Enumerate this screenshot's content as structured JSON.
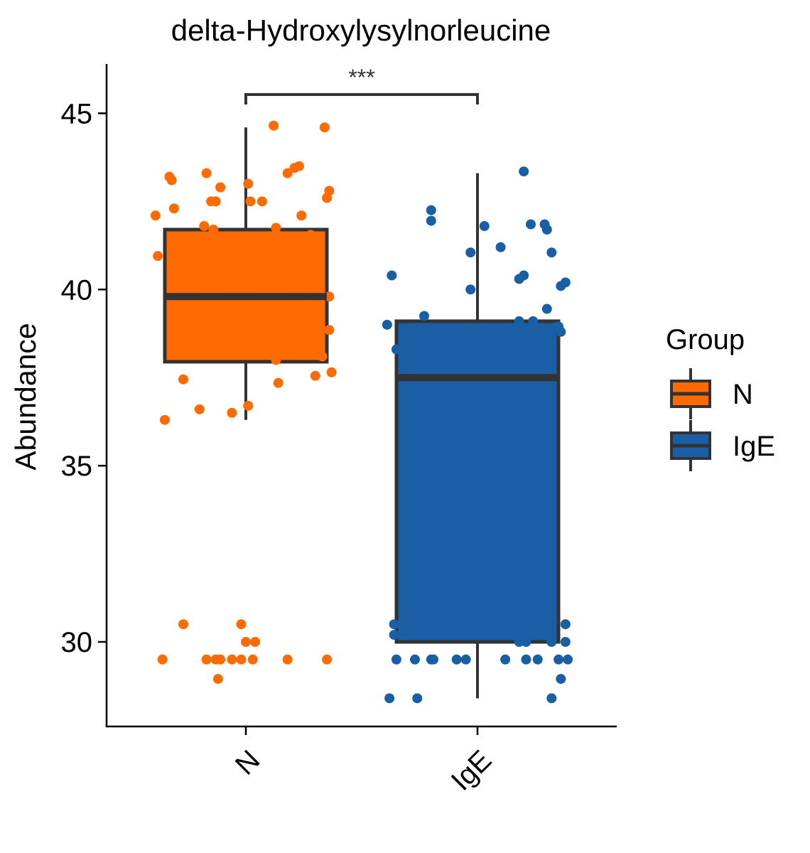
{
  "chart_data": {
    "type": "box",
    "title": "delta-Hydroxylysylnorleucine",
    "xlabel": "",
    "ylabel": "Abundance",
    "ylim": [
      27.6,
      46.4
    ],
    "yticks": [
      30,
      35,
      40,
      45
    ],
    "categories": [
      "N",
      "IgE"
    ],
    "legend": {
      "title": "Group",
      "position": "right",
      "entries": [
        "N",
        "IgE"
      ]
    },
    "significance": {
      "label": "***",
      "between": [
        "N",
        "IgE"
      ]
    },
    "colors": {
      "N": "#FF6B00",
      "IgE": "#1A5FA6",
      "box_edge": "#333333"
    },
    "series": [
      {
        "name": "N",
        "box": {
          "whisker_low": 36.3,
          "q1": 37.95,
          "median": 39.8,
          "q3": 41.7,
          "whisker_high": 44.6
        },
        "points": [
          [
            0.34,
            44.6
          ],
          [
            0.12,
            44.65
          ],
          [
            0.23,
            43.5
          ],
          [
            0.21,
            43.45
          ],
          [
            0.18,
            43.3
          ],
          [
            -0.17,
            43.3
          ],
          [
            0.01,
            43.0
          ],
          [
            -0.33,
            43.2
          ],
          [
            -0.32,
            43.1
          ],
          [
            -0.11,
            42.9
          ],
          [
            0.36,
            42.8
          ],
          [
            -0.15,
            42.5
          ],
          [
            -0.13,
            42.5
          ],
          [
            0.07,
            42.5
          ],
          [
            0.35,
            42.6
          ],
          [
            0.02,
            42.5
          ],
          [
            -0.31,
            42.3
          ],
          [
            -0.39,
            42.1
          ],
          [
            0.24,
            42.1
          ],
          [
            -0.18,
            41.8
          ],
          [
            -0.14,
            41.7
          ],
          [
            0.13,
            41.75
          ],
          [
            0.28,
            41.55
          ],
          [
            -0.38,
            40.95
          ],
          [
            0.36,
            39.8
          ],
          [
            0.12,
            39.8
          ],
          [
            -0.18,
            39.8
          ],
          [
            -0.15,
            39.65
          ],
          [
            -0.29,
            39.65
          ],
          [
            0.36,
            38.85
          ],
          [
            0.33,
            38.1
          ],
          [
            0.13,
            38.0
          ],
          [
            -0.27,
            37.45
          ],
          [
            0.3,
            37.55
          ],
          [
            0.14,
            37.35
          ],
          [
            0.37,
            37.65
          ],
          [
            -0.35,
            36.3
          ],
          [
            -0.2,
            36.6
          ],
          [
            -0.06,
            36.5
          ],
          [
            0.01,
            36.7
          ],
          [
            -0.27,
            30.5
          ],
          [
            -0.02,
            30.5
          ],
          [
            0.0,
            30.0
          ],
          [
            0.04,
            30.0
          ],
          [
            -0.36,
            29.5
          ],
          [
            -0.17,
            29.5
          ],
          [
            -0.13,
            29.5
          ],
          [
            -0.11,
            29.5
          ],
          [
            -0.06,
            29.5
          ],
          [
            -0.02,
            29.5
          ],
          [
            0.03,
            29.5
          ],
          [
            0.18,
            29.5
          ],
          [
            0.35,
            29.5
          ],
          [
            -0.12,
            28.95
          ]
        ]
      },
      {
        "name": "IgE",
        "box": {
          "whisker_low": 28.4,
          "q1": 30.0,
          "median": 37.5,
          "q3": 39.1,
          "whisker_high": 43.3
        },
        "points": [
          [
            0.2,
            43.35
          ],
          [
            -0.2,
            42.25
          ],
          [
            -0.2,
            41.95
          ],
          [
            0.23,
            41.85
          ],
          [
            0.29,
            41.85
          ],
          [
            0.3,
            41.7
          ],
          [
            0.03,
            41.8
          ],
          [
            0.1,
            41.2
          ],
          [
            -0.03,
            41.05
          ],
          [
            0.32,
            41.05
          ],
          [
            0.2,
            40.4
          ],
          [
            0.18,
            40.3
          ],
          [
            -0.37,
            40.4
          ],
          [
            0.38,
            40.2
          ],
          [
            0.36,
            40.1
          ],
          [
            -0.03,
            40.0
          ],
          [
            0.3,
            39.45
          ],
          [
            -0.23,
            39.25
          ],
          [
            -0.39,
            39.0
          ],
          [
            0.18,
            39.1
          ],
          [
            0.24,
            39.1
          ],
          [
            0.35,
            38.95
          ],
          [
            0.36,
            38.8
          ],
          [
            -0.35,
            38.3
          ],
          [
            -0.21,
            37.6
          ],
          [
            0.03,
            37.65
          ],
          [
            0.14,
            37.5
          ],
          [
            0.29,
            37.5
          ],
          [
            -0.36,
            30.5
          ],
          [
            0.38,
            30.5
          ],
          [
            -0.36,
            30.2
          ],
          [
            0.18,
            30.0
          ],
          [
            0.21,
            30.0
          ],
          [
            0.32,
            30.0
          ],
          [
            0.38,
            30.0
          ],
          [
            -0.35,
            29.5
          ],
          [
            -0.27,
            29.5
          ],
          [
            -0.2,
            29.5
          ],
          [
            -0.19,
            29.5
          ],
          [
            -0.09,
            29.5
          ],
          [
            -0.05,
            29.5
          ],
          [
            0.12,
            29.5
          ],
          [
            0.21,
            29.5
          ],
          [
            0.26,
            29.5
          ],
          [
            0.35,
            29.5
          ],
          [
            0.39,
            29.5
          ],
          [
            0.36,
            28.95
          ],
          [
            -0.38,
            28.4
          ],
          [
            -0.26,
            28.4
          ],
          [
            0.32,
            28.4
          ]
        ]
      }
    ]
  }
}
